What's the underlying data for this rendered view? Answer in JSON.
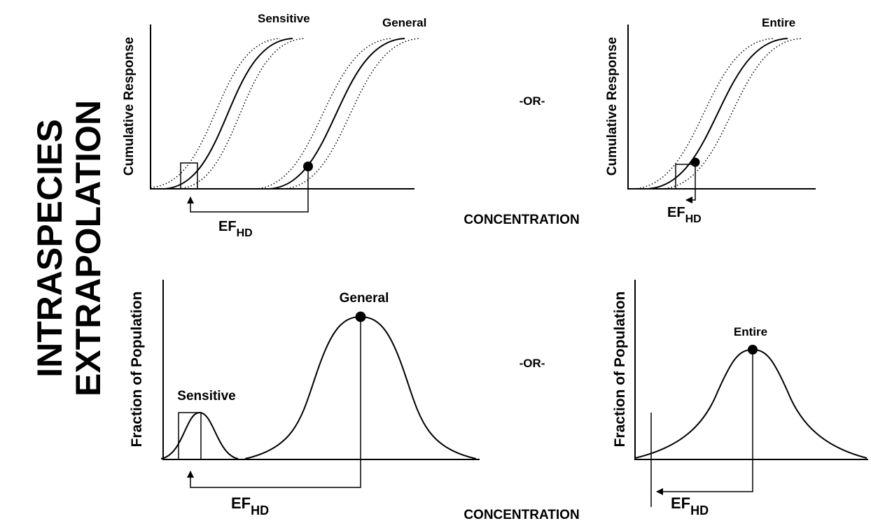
{
  "title_lines": [
    "INTRASPECIES",
    "EXTRAPOLATION"
  ],
  "separators": [
    "-OR-",
    "-OR-"
  ],
  "x_axis_labels": [
    "CONCENTRATION",
    "CONCENTRATION"
  ],
  "panels": [
    {
      "y_label": "Cumulative Response",
      "curve_labels": [
        "Sensitive",
        "General"
      ],
      "factor": {
        "main": "EF",
        "sub": "HD"
      }
    },
    {
      "y_label": "Cumulative Response",
      "curve_labels": [
        "Entire"
      ],
      "factor": {
        "main": "EF",
        "sub": "HD"
      }
    },
    {
      "y_label": "Fraction of Population",
      "curve_labels": [
        "General",
        "Sensitive"
      ],
      "factor": {
        "main": "EF",
        "sub": "HD"
      }
    },
    {
      "y_label": "Fraction of Population",
      "curve_labels": [
        "Entire"
      ],
      "factor": {
        "main": "EF",
        "sub": "HD"
      }
    }
  ]
}
